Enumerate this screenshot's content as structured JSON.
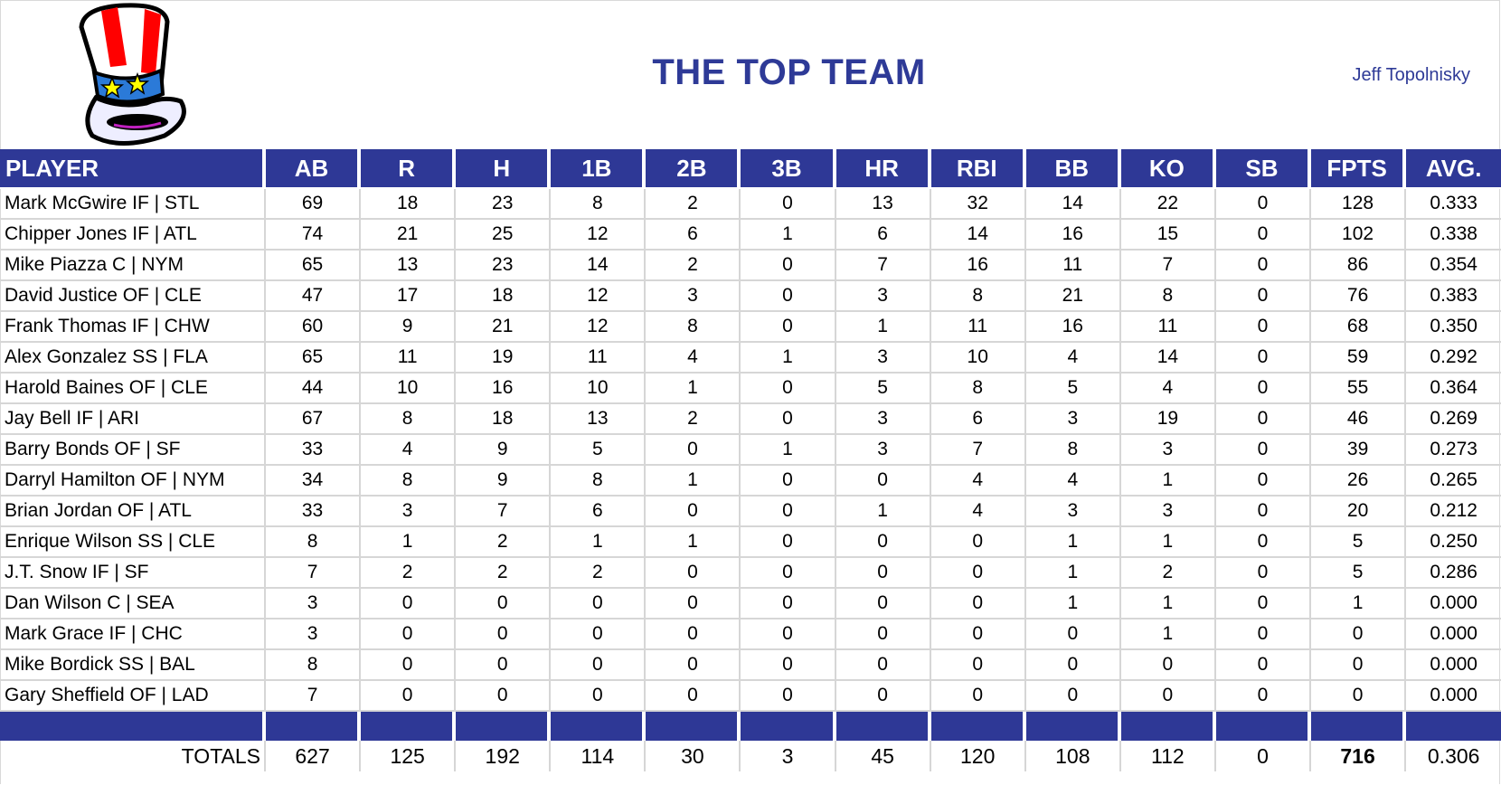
{
  "header": {
    "title": "THE TOP TEAM",
    "owner": "Jeff Topolnisky",
    "logo": "uncle-sam-hat-icon"
  },
  "colors": {
    "header_bg": "#2e3896",
    "title": "#2e3a97",
    "grid": "#d6d6d6"
  },
  "table": {
    "columns": [
      "PLAYER",
      "AB",
      "R",
      "H",
      "1B",
      "2B",
      "3B",
      "HR",
      "RBI",
      "BB",
      "KO",
      "SB",
      "FPTS",
      "AVG."
    ],
    "rows": [
      [
        "Mark McGwire IF | STL",
        "69",
        "18",
        "23",
        "8",
        "2",
        "0",
        "13",
        "32",
        "14",
        "22",
        "0",
        "128",
        "0.333"
      ],
      [
        "Chipper Jones IF | ATL",
        "74",
        "21",
        "25",
        "12",
        "6",
        "1",
        "6",
        "14",
        "16",
        "15",
        "0",
        "102",
        "0.338"
      ],
      [
        "Mike Piazza C | NYM",
        "65",
        "13",
        "23",
        "14",
        "2",
        "0",
        "7",
        "16",
        "11",
        "7",
        "0",
        "86",
        "0.354"
      ],
      [
        "David Justice OF | CLE",
        "47",
        "17",
        "18",
        "12",
        "3",
        "0",
        "3",
        "8",
        "21",
        "8",
        "0",
        "76",
        "0.383"
      ],
      [
        "Frank Thomas IF | CHW",
        "60",
        "9",
        "21",
        "12",
        "8",
        "0",
        "1",
        "11",
        "16",
        "11",
        "0",
        "68",
        "0.350"
      ],
      [
        "Alex Gonzalez SS | FLA",
        "65",
        "11",
        "19",
        "11",
        "4",
        "1",
        "3",
        "10",
        "4",
        "14",
        "0",
        "59",
        "0.292"
      ],
      [
        "Harold Baines OF | CLE",
        "44",
        "10",
        "16",
        "10",
        "1",
        "0",
        "5",
        "8",
        "5",
        "4",
        "0",
        "55",
        "0.364"
      ],
      [
        "Jay Bell IF | ARI",
        "67",
        "8",
        "18",
        "13",
        "2",
        "0",
        "3",
        "6",
        "3",
        "19",
        "0",
        "46",
        "0.269"
      ],
      [
        "Barry Bonds OF | SF",
        "33",
        "4",
        "9",
        "5",
        "0",
        "1",
        "3",
        "7",
        "8",
        "3",
        "0",
        "39",
        "0.273"
      ],
      [
        "Darryl Hamilton OF | NYM",
        "34",
        "8",
        "9",
        "8",
        "1",
        "0",
        "0",
        "4",
        "4",
        "1",
        "0",
        "26",
        "0.265"
      ],
      [
        "Brian Jordan OF | ATL",
        "33",
        "3",
        "7",
        "6",
        "0",
        "0",
        "1",
        "4",
        "3",
        "3",
        "0",
        "20",
        "0.212"
      ],
      [
        "Enrique Wilson SS | CLE",
        "8",
        "1",
        "2",
        "1",
        "1",
        "0",
        "0",
        "0",
        "1",
        "1",
        "0",
        "5",
        "0.250"
      ],
      [
        "J.T. Snow IF | SF",
        "7",
        "2",
        "2",
        "2",
        "0",
        "0",
        "0",
        "0",
        "1",
        "2",
        "0",
        "5",
        "0.286"
      ],
      [
        "Dan Wilson C | SEA",
        "3",
        "0",
        "0",
        "0",
        "0",
        "0",
        "0",
        "0",
        "1",
        "1",
        "0",
        "1",
        "0.000"
      ],
      [
        "Mark Grace IF | CHC",
        "3",
        "0",
        "0",
        "0",
        "0",
        "0",
        "0",
        "0",
        "0",
        "1",
        "0",
        "0",
        "0.000"
      ],
      [
        "Mike Bordick SS | BAL",
        "8",
        "0",
        "0",
        "0",
        "0",
        "0",
        "0",
        "0",
        "0",
        "0",
        "0",
        "0",
        "0.000"
      ],
      [
        "Gary Sheffield OF | LAD",
        "7",
        "0",
        "0",
        "0",
        "0",
        "0",
        "0",
        "0",
        "0",
        "0",
        "0",
        "0",
        "0.000"
      ]
    ],
    "totals": [
      "TOTALS",
      "627",
      "125",
      "192",
      "114",
      "30",
      "3",
      "45",
      "120",
      "108",
      "112",
      "0",
      "716",
      "0.306"
    ]
  }
}
